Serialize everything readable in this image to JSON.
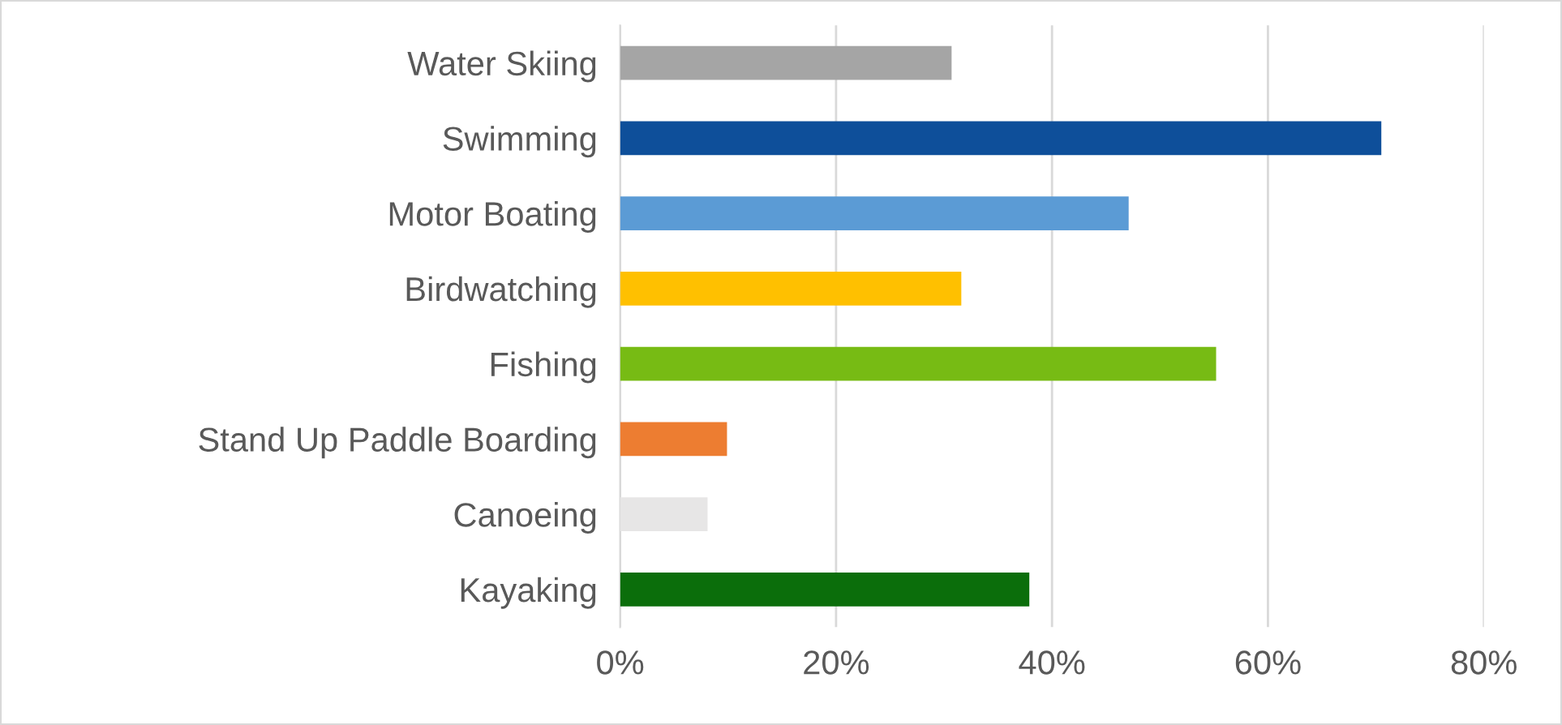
{
  "chart_data": {
    "type": "bar",
    "orientation": "horizontal",
    "categories": [
      "Water Skiing",
      "Swimming",
      "Motor Boating",
      "Birdwatching",
      "Fishing",
      "Stand Up Paddle Boarding",
      "Canoeing",
      "Kayaking"
    ],
    "values": [
      30.7,
      70.5,
      47.1,
      31.6,
      55.2,
      9.9,
      8.1,
      37.9
    ],
    "colors": [
      "#a5a5a5",
      "#0e4f9a",
      "#5b9bd5",
      "#ffc000",
      "#77bb14",
      "#ed7d31",
      "#e7e6e6",
      "#0b6e0b"
    ],
    "xlim": [
      0,
      80
    ],
    "xticks": [
      {
        "value": 0,
        "label": "0%"
      },
      {
        "value": 20,
        "label": "20%"
      },
      {
        "value": 40,
        "label": "40%"
      },
      {
        "value": 60,
        "label": "60%"
      },
      {
        "value": 80,
        "label": "80%"
      }
    ],
    "grid": "x"
  }
}
